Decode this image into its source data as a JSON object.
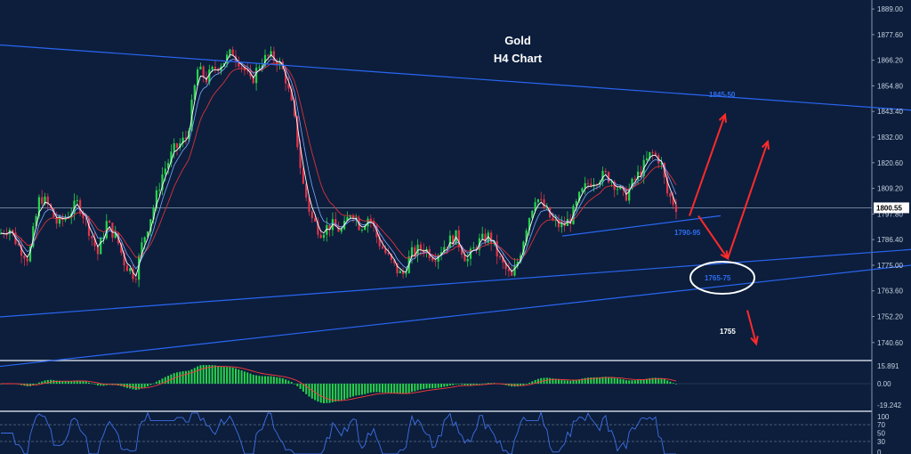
{
  "chart_data": {
    "type": "candlestick",
    "title": "Gold",
    "subtitle": "H4 Chart",
    "instrument": "Gold",
    "timeframe": "H4",
    "grid": false,
    "price_axis": {
      "ylim": [
        1733,
        1893
      ],
      "ticks": [
        "1889.00",
        "1877.60",
        "1866.20",
        "1854.80",
        "1843.40",
        "1832.00",
        "1820.60",
        "1809.20",
        "1797.80",
        "1786.40",
        "1775.00",
        "1763.60",
        "1752.20",
        "1740.60"
      ],
      "tick_values": [
        1889.0,
        1877.6,
        1866.2,
        1854.8,
        1843.4,
        1832.0,
        1820.6,
        1809.2,
        1797.8,
        1786.4,
        1775.0,
        1763.6,
        1752.2,
        1740.6
      ],
      "current_price": "1800.55",
      "current_price_value": 1800.55
    },
    "price_path": [
      [
        0,
        1789
      ],
      [
        10,
        1792
      ],
      [
        20,
        1784
      ],
      [
        32,
        1778
      ],
      [
        45,
        1806
      ],
      [
        55,
        1801
      ],
      [
        65,
        1793
      ],
      [
        75,
        1797
      ],
      [
        88,
        1803
      ],
      [
        100,
        1791
      ],
      [
        110,
        1780
      ],
      [
        120,
        1794
      ],
      [
        132,
        1786
      ],
      [
        140,
        1776
      ],
      [
        152,
        1770
      ],
      [
        160,
        1785
      ],
      [
        172,
        1800
      ],
      [
        182,
        1815
      ],
      [
        195,
        1826
      ],
      [
        210,
        1832
      ],
      [
        222,
        1862
      ],
      [
        232,
        1858
      ],
      [
        242,
        1863
      ],
      [
        252,
        1866
      ],
      [
        262,
        1870
      ],
      [
        272,
        1864
      ],
      [
        282,
        1856
      ],
      [
        292,
        1865
      ],
      [
        302,
        1868
      ],
      [
        312,
        1866
      ],
      [
        320,
        1860
      ],
      [
        330,
        1842
      ],
      [
        340,
        1812
      ],
      [
        350,
        1796
      ],
      [
        360,
        1790
      ],
      [
        372,
        1793
      ],
      [
        385,
        1790
      ],
      [
        395,
        1800
      ],
      [
        405,
        1792
      ],
      [
        415,
        1797
      ],
      [
        425,
        1786
      ],
      [
        440,
        1776
      ],
      [
        452,
        1770
      ],
      [
        462,
        1780
      ],
      [
        475,
        1783
      ],
      [
        488,
        1779
      ],
      [
        500,
        1784
      ],
      [
        512,
        1788
      ],
      [
        525,
        1777
      ],
      [
        537,
        1785
      ],
      [
        550,
        1788
      ],
      [
        562,
        1777
      ],
      [
        575,
        1769
      ],
      [
        583,
        1778
      ],
      [
        592,
        1793
      ],
      [
        602,
        1806
      ],
      [
        612,
        1800
      ],
      [
        622,
        1794
      ],
      [
        632,
        1792
      ],
      [
        642,
        1796
      ],
      [
        652,
        1806
      ],
      [
        662,
        1812
      ],
      [
        672,
        1814
      ],
      [
        682,
        1815
      ],
      [
        692,
        1811
      ],
      [
        702,
        1805
      ],
      [
        712,
        1812
      ],
      [
        722,
        1818
      ],
      [
        732,
        1825
      ],
      [
        742,
        1822
      ],
      [
        750,
        1807
      ],
      [
        762,
        1800
      ]
    ],
    "levels": [
      {
        "label": "1845-50",
        "color": "#2e6df0"
      },
      {
        "label": "1790-95",
        "color": "#2e6df0"
      },
      {
        "label": "1765-75",
        "color": "#2e6df0"
      },
      {
        "label": "1755",
        "color": "#ffffff"
      }
    ],
    "trendlines": [
      {
        "name": "upper-channel",
        "points": [
          [
            0,
            1873
          ],
          [
            1024,
            1844
          ]
        ]
      },
      {
        "name": "channel-line-a",
        "points": [
          [
            0,
            1752
          ],
          [
            1024,
            1782
          ]
        ]
      },
      {
        "name": "channel-line-b",
        "points": [
          [
            0,
            1730
          ],
          [
            1024,
            1775
          ]
        ]
      },
      {
        "name": "support-line",
        "points": [
          [
            632,
            1788
          ],
          [
            810,
            1797
          ]
        ]
      }
    ],
    "arrows": [
      {
        "name": "arrow-up-near",
        "from": [
          775,
          1797
        ],
        "to": [
          815,
          1842
        ],
        "color": "#ff2a2a"
      },
      {
        "name": "arrow-down",
        "from": [
          785,
          1797
        ],
        "to": [
          818,
          1778
        ],
        "color": "#ff2a2a"
      },
      {
        "name": "arrow-up-far",
        "from": [
          818,
          1778
        ],
        "to": [
          863,
          1830
        ],
        "color": "#ff2a2a"
      },
      {
        "name": "arrow-down-small",
        "from": [
          840,
          1755
        ],
        "to": [
          850,
          1740
        ],
        "color": "#ff2a2a"
      }
    ],
    "macd": {
      "ticks": [
        "15.891",
        "0.00",
        "-19.242"
      ],
      "tick_values": [
        15.891,
        0,
        -19.242
      ]
    },
    "rsi": {
      "ticks": [
        "100",
        "70",
        "50",
        "30",
        "0"
      ],
      "tick_values": [
        100,
        70,
        50,
        30,
        0
      ]
    },
    "colors": {
      "background": "#0c1e3c",
      "bull": "#27d44a",
      "bear": "#e0344a",
      "channel": "#2a66f2",
      "arrow": "#ff2a2a",
      "ma_fast": "#ffffff",
      "ma_slow": "#d8323c"
    }
  }
}
